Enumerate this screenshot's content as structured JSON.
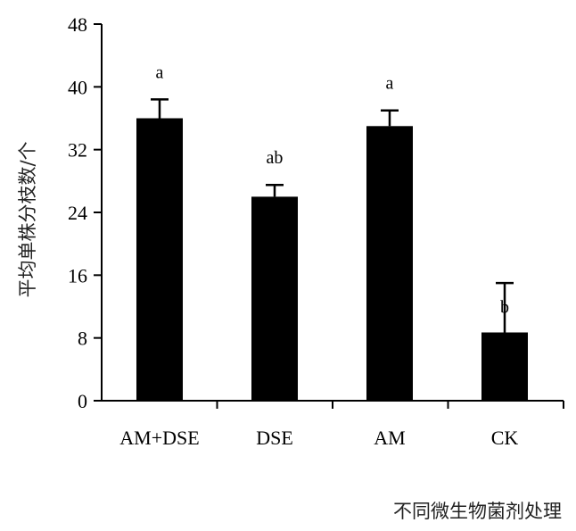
{
  "chart_data": {
    "type": "bar",
    "categories": [
      "AM+DSE",
      "DSE",
      "AM",
      "CK"
    ],
    "values": [
      36,
      26,
      35,
      8.7
    ],
    "error_bars": [
      2.4,
      1.5,
      2.0,
      6.3
    ],
    "significance_letters": [
      "a",
      "ab",
      "a",
      "b"
    ],
    "xlabel": "不同微生物菌剂处理",
    "ylabel": "平均单株分枝数/个",
    "ylim": [
      0,
      48
    ],
    "yticks": [
      0,
      8,
      16,
      24,
      32,
      40,
      48
    ],
    "bar_color": "#000000",
    "grid": false
  }
}
